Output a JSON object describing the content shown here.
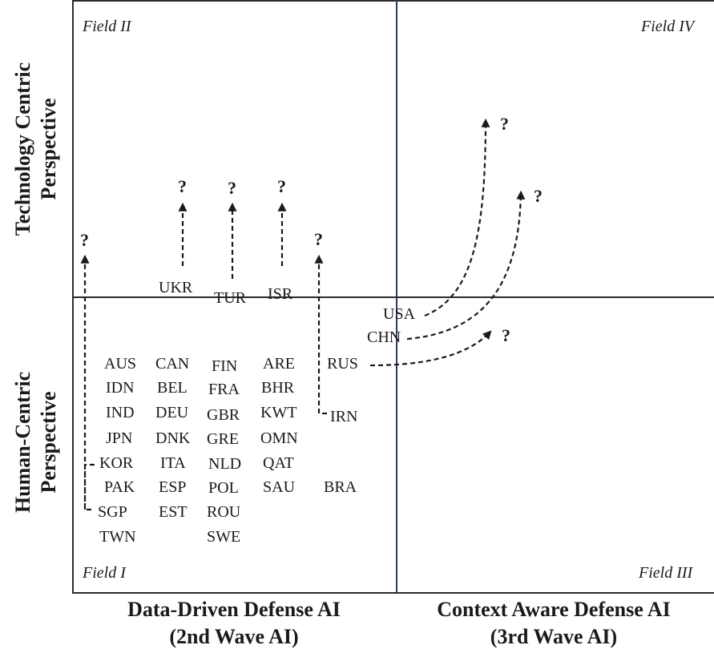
{
  "fields": {
    "field_ii": "Field II",
    "field_iv": "Field IV",
    "field_i": "Field I",
    "field_iii": "Field III"
  },
  "y_axis": {
    "top_line1": "Technology Centric",
    "top_line2": "Perspective",
    "bottom_line1": "Human-Centric",
    "bottom_line2": "Perspective"
  },
  "x_axis": {
    "left_line1": "Data-Driven Defense AI",
    "left_line2": "(2nd Wave AI)",
    "right_line1": "Context Aware Defense AI",
    "right_line2": "(3rd Wave AI)"
  },
  "question_mark": "?",
  "countries": {
    "ukr": "UKR",
    "tur": "TUR",
    "isr": "ISR",
    "usa": "USA",
    "chn": "CHN",
    "rus": "RUS",
    "irn": "IRN",
    "aus": "AUS",
    "idn": "IDN",
    "ind": "IND",
    "jpn": "JPN",
    "kor": "KOR",
    "pak": "PAK",
    "sgp": "SGP",
    "twn": "TWN",
    "can": "CAN",
    "bel": "BEL",
    "deu": "DEU",
    "dnk": "DNK",
    "ita": "ITA",
    "esp": "ESP",
    "est": "EST",
    "fin": "FIN",
    "fra": "FRA",
    "gbr": "GBR",
    "gre": "GRE",
    "nld": "NLD",
    "pol": "POL",
    "rou": "ROU",
    "swe": "SWE",
    "are": "ARE",
    "bhr": "BHR",
    "kwt": "KWT",
    "omn": "OMN",
    "qat": "QAT",
    "sau": "SAU",
    "bra": "BRA"
  }
}
